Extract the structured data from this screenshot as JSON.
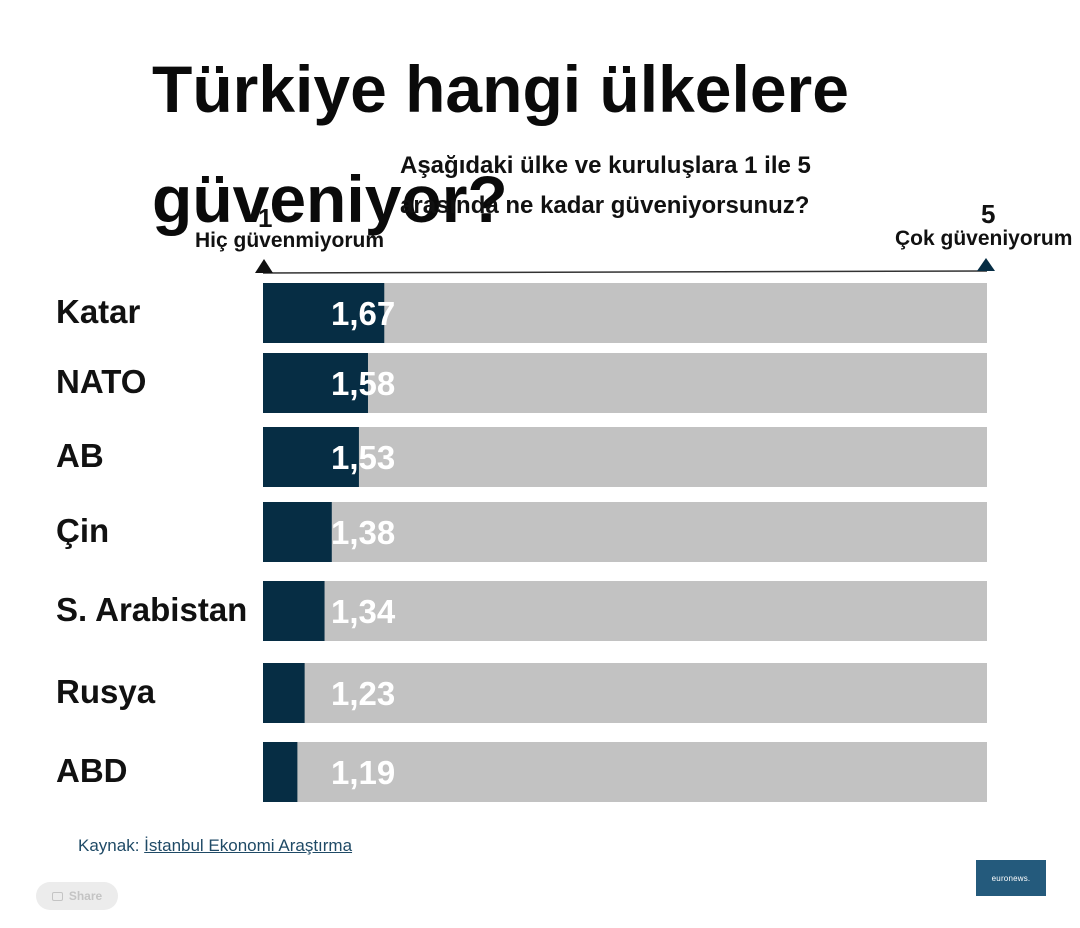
{
  "title": "Türkiye hangi ülkelere güveniyor?",
  "subtitle": "Aşağıdaki ülke ve kuruluşlara 1 ile 5 arasında ne kadar güveniyorsunuz?",
  "scale": {
    "min_value": "1",
    "min_label": "Hiç güvenmiyorum",
    "max_value": "5",
    "max_label": "Çok güveniyorum"
  },
  "source": {
    "prefix": "Kaynak:",
    "link_text": "İstanbul Ekonomi Araştırma"
  },
  "share_label": "Share",
  "logo_text": "euronews.",
  "colors": {
    "bar": "#062d44",
    "track": "#c2c2c2",
    "axis": "#333333"
  },
  "chart_data": {
    "type": "bar",
    "orientation": "horizontal",
    "categories": [
      "Katar",
      "NATO",
      "AB",
      "Çin",
      "S. Arabistan",
      "Rusya",
      "ABD"
    ],
    "values": [
      1.67,
      1.58,
      1.53,
      1.38,
      1.34,
      1.23,
      1.19
    ],
    "value_labels": [
      "1,67",
      "1,58",
      "1,53",
      "1,38",
      "1,34",
      "1,23",
      "1,19"
    ],
    "xlim": [
      1,
      5
    ],
    "grid": false,
    "legend": "none"
  }
}
